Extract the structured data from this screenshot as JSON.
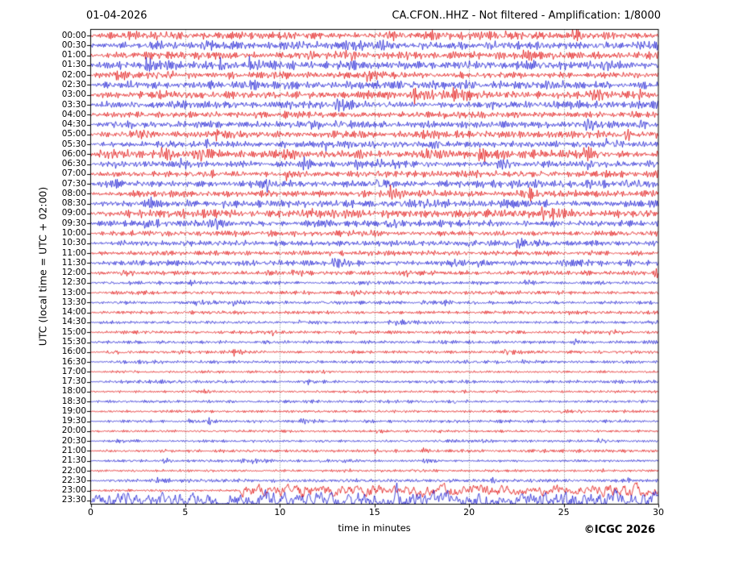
{
  "header": {
    "date": "01-04-2026",
    "station_info": "CA.CFON..HHZ - Not filtered - Amplification: 1/8000"
  },
  "footer": {
    "copyright": "©ICGC 2026"
  },
  "chart_data": {
    "type": "line",
    "variant": "helicorder-seismogram",
    "title": "01-04-2026",
    "subtitle": "CA.CFON..HHZ - Not filtered - Amplification: 1/8000",
    "xlabel": "time in minutes",
    "ylabel": "UTC (local time = UTC + 02:00)",
    "xlim": [
      0,
      30
    ],
    "x_ticks": [
      0,
      5,
      10,
      15,
      20,
      25,
      30
    ],
    "minutes_per_row": 30,
    "grid": {
      "vertical_at_minutes": [
        5,
        10,
        15,
        20,
        25
      ],
      "style": "dotted",
      "color": "#777777"
    },
    "legend_position": "none",
    "colors": {
      "red": "#e00000",
      "blue": "#0f0fd0",
      "axis": "#000000"
    },
    "rows": [
      {
        "label": "00:00",
        "color": "red",
        "amp": 4.2
      },
      {
        "label": "00:30",
        "color": "blue",
        "amp": 4.6
      },
      {
        "label": "01:00",
        "color": "red",
        "amp": 4.0
      },
      {
        "label": "01:30",
        "color": "blue",
        "amp": 4.6
      },
      {
        "label": "02:00",
        "color": "red",
        "amp": 3.6
      },
      {
        "label": "02:30",
        "color": "blue",
        "amp": 4.4
      },
      {
        "label": "03:00",
        "color": "red",
        "amp": 4.2
      },
      {
        "label": "03:30",
        "color": "blue",
        "amp": 4.2
      },
      {
        "label": "04:00",
        "color": "red",
        "amp": 3.2
      },
      {
        "label": "04:30",
        "color": "blue",
        "amp": 3.6
      },
      {
        "label": "05:00",
        "color": "red",
        "amp": 4.0
      },
      {
        "label": "05:30",
        "color": "blue",
        "amp": 3.4
      },
      {
        "label": "06:00",
        "color": "red",
        "amp": 4.2
      },
      {
        "label": "06:30",
        "color": "blue",
        "amp": 3.6
      },
      {
        "label": "07:00",
        "color": "red",
        "amp": 3.4
      },
      {
        "label": "07:30",
        "color": "blue",
        "amp": 4.0
      },
      {
        "label": "08:00",
        "color": "red",
        "amp": 3.6
      },
      {
        "label": "08:30",
        "color": "blue",
        "amp": 4.0
      },
      {
        "label": "09:00",
        "color": "red",
        "amp": 4.6
      },
      {
        "label": "09:30",
        "color": "blue",
        "amp": 3.4
      },
      {
        "label": "10:00",
        "color": "red",
        "amp": 3.0
      },
      {
        "label": "10:30",
        "color": "blue",
        "amp": 3.0
      },
      {
        "label": "11:00",
        "color": "red",
        "amp": 2.6
      },
      {
        "label": "11:30",
        "color": "blue",
        "amp": 3.0
      },
      {
        "label": "12:00",
        "color": "red",
        "amp": 2.4
      },
      {
        "label": "12:30",
        "color": "blue",
        "amp": 2.0
      },
      {
        "label": "13:00",
        "color": "red",
        "amp": 2.0
      },
      {
        "label": "13:30",
        "color": "blue",
        "amp": 1.9
      },
      {
        "label": "14:00",
        "color": "red",
        "amp": 1.9
      },
      {
        "label": "14:30",
        "color": "blue",
        "amp": 1.7
      },
      {
        "label": "15:00",
        "color": "red",
        "amp": 1.7
      },
      {
        "label": "15:30",
        "color": "blue",
        "amp": 1.7
      },
      {
        "label": "16:00",
        "color": "red",
        "amp": 1.7
      },
      {
        "label": "16:30",
        "color": "blue",
        "amp": 1.7
      },
      {
        "label": "17:00",
        "color": "red",
        "amp": 1.4
      },
      {
        "label": "17:30",
        "color": "blue",
        "amp": 1.7
      },
      {
        "label": "18:00",
        "color": "red",
        "amp": 1.4
      },
      {
        "label": "18:30",
        "color": "blue",
        "amp": 1.6
      },
      {
        "label": "19:00",
        "color": "red",
        "amp": 1.4
      },
      {
        "label": "19:30",
        "color": "blue",
        "amp": 1.6
      },
      {
        "label": "20:00",
        "color": "red",
        "amp": 1.4
      },
      {
        "label": "20:30",
        "color": "blue",
        "amp": 1.4
      },
      {
        "label": "21:00",
        "color": "red",
        "amp": 1.6
      },
      {
        "label": "21:30",
        "color": "blue",
        "amp": 1.4
      },
      {
        "label": "22:00",
        "color": "red",
        "amp": 1.4
      },
      {
        "label": "22:30",
        "color": "blue",
        "amp": 1.9
      },
      {
        "label": "23:00",
        "color": "red",
        "amp": 1.3,
        "event_from_min": 7.9,
        "event_amp": 5.0
      },
      {
        "label": "23:30",
        "color": "blue",
        "amp": 8.5,
        "lowfreq": true,
        "clip_bottom": true
      }
    ]
  }
}
